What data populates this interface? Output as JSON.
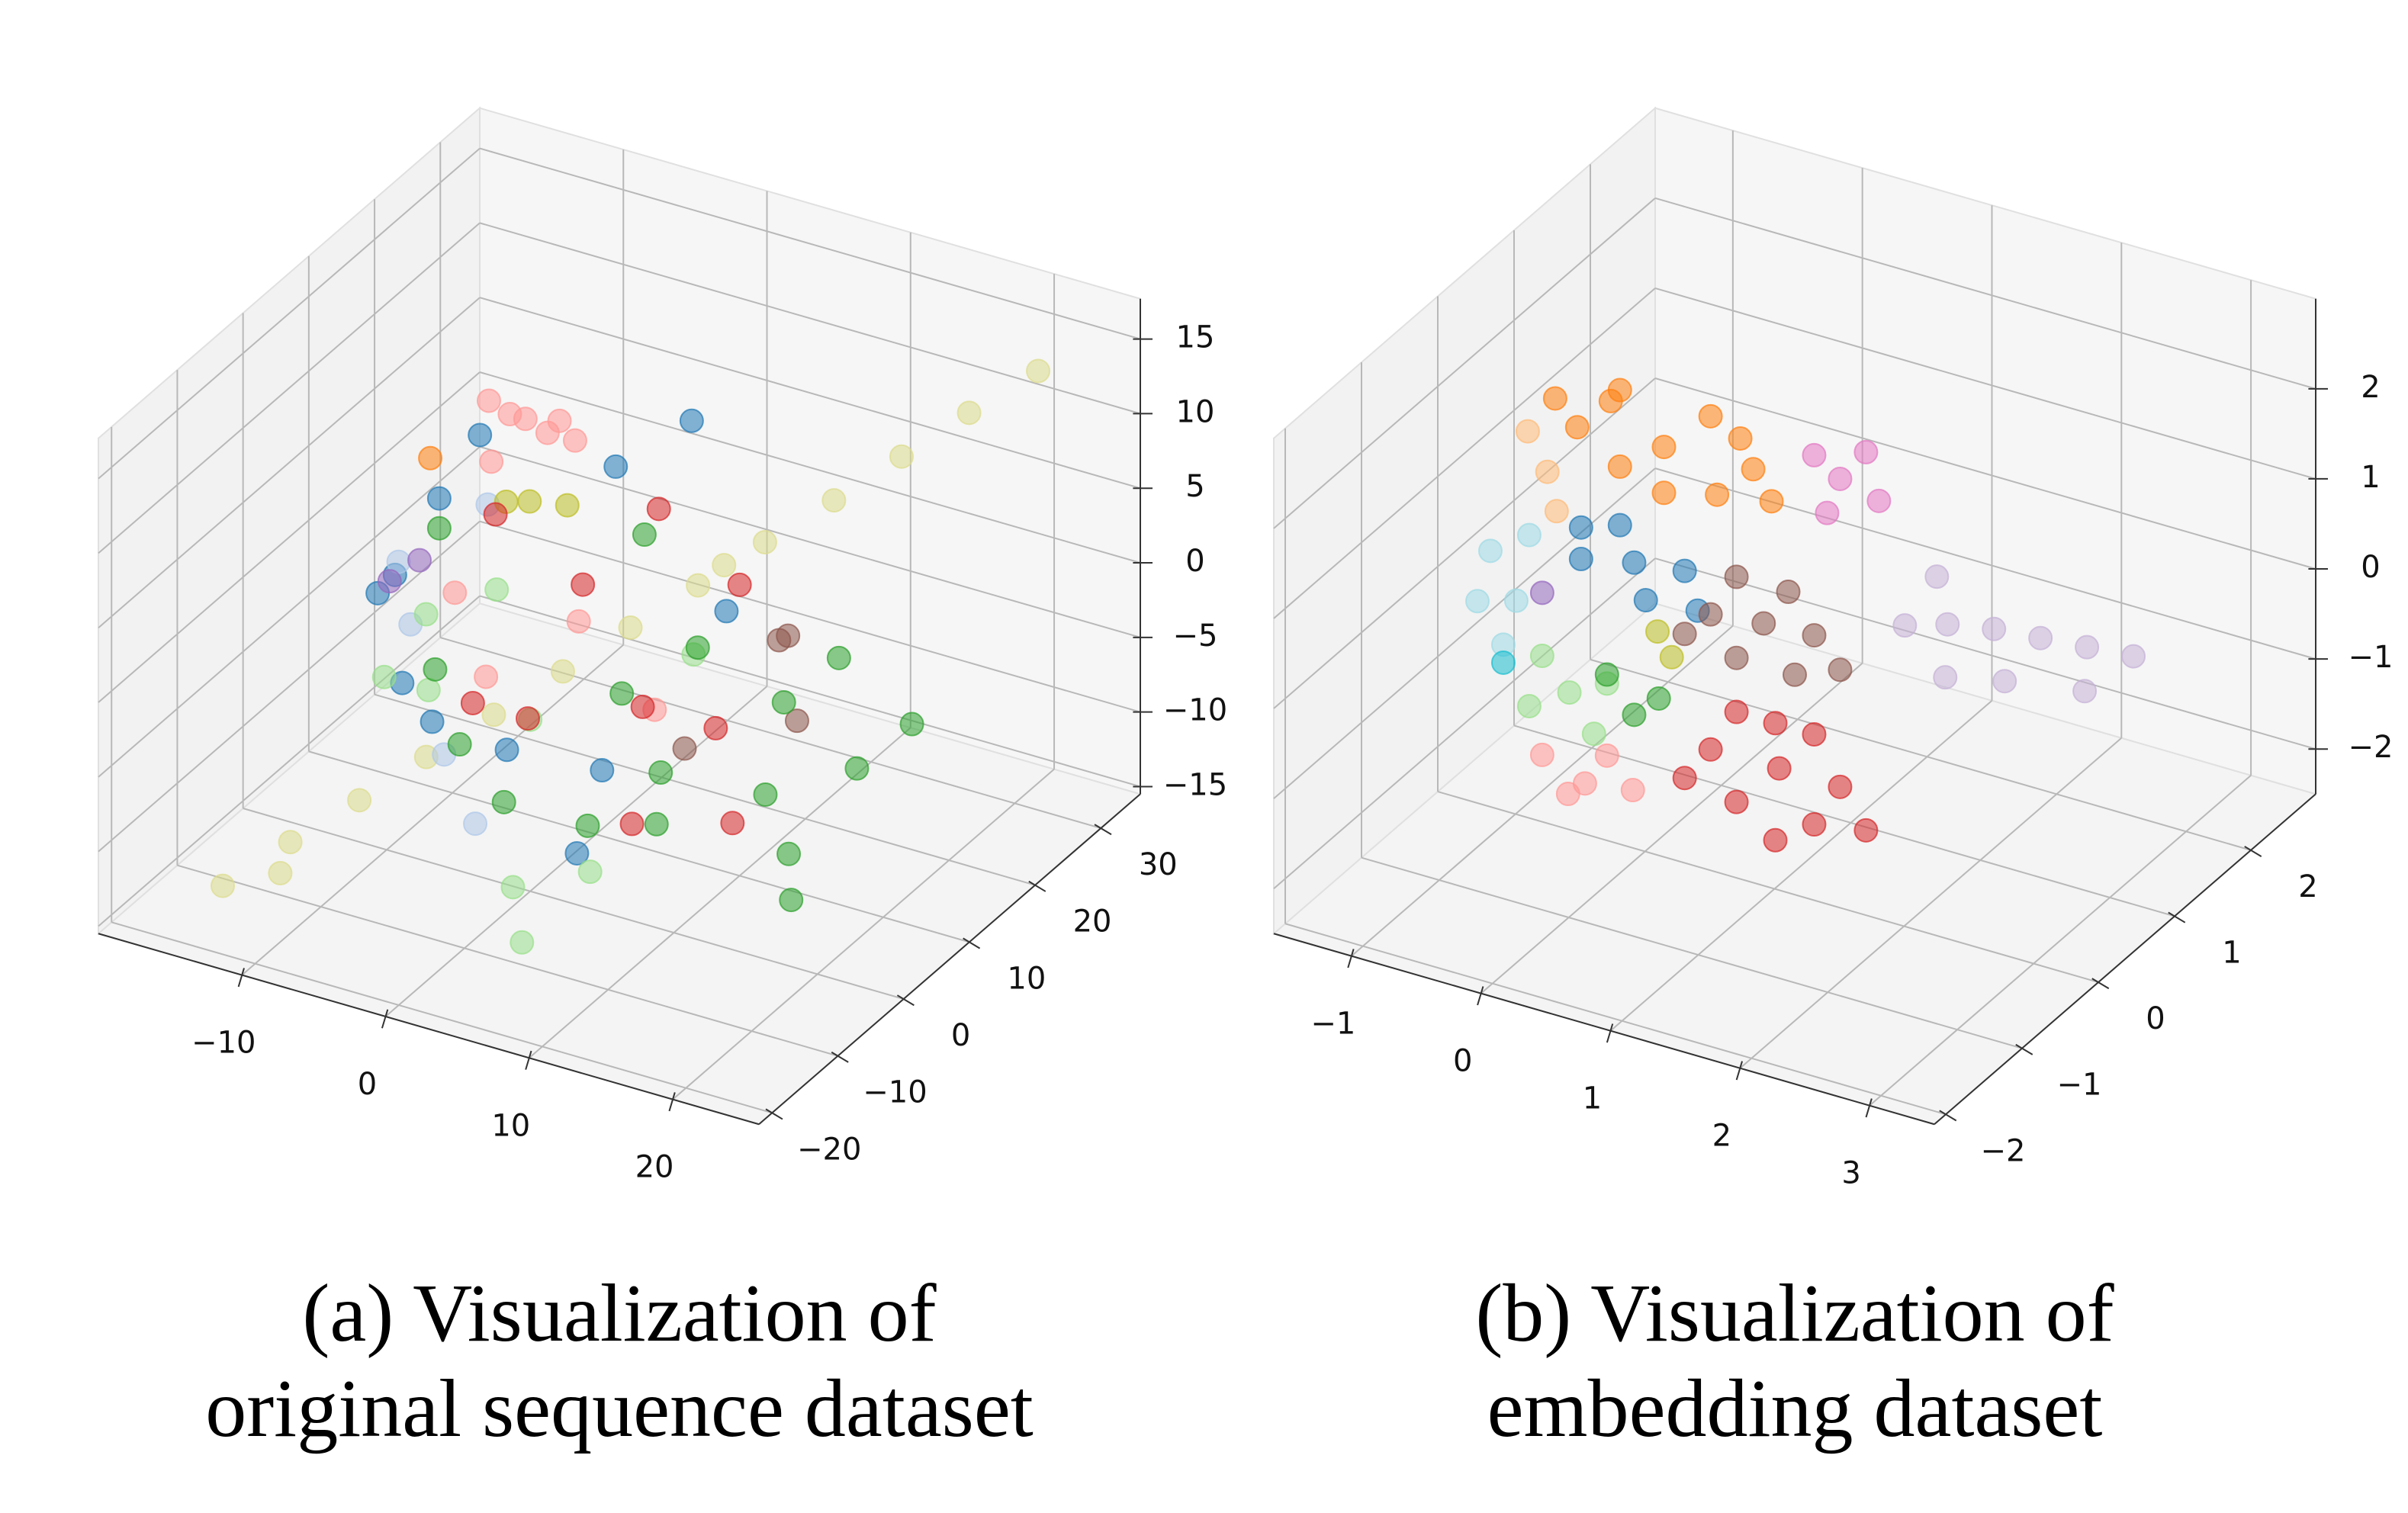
{
  "chart_data": [
    {
      "type": "scatter3d",
      "grid": true,
      "caption": [
        "(a) Visualization of",
        "original sequence dataset"
      ],
      "xlim": [
        -20,
        26
      ],
      "ylim": [
        -22,
        36
      ],
      "zlim": [
        -15.5,
        17.7
      ],
      "xticks": [
        {
          "value": -10,
          "label": "−10"
        },
        0,
        10,
        20
      ],
      "yticks": [
        {
          "value": -20,
          "label": "−20"
        },
        {
          "value": -10,
          "label": "−10"
        },
        0,
        10,
        20,
        30
      ],
      "zticks": [
        {
          "value": -15,
          "label": "−15"
        },
        {
          "value": -10,
          "label": "−10"
        },
        {
          "value": -5,
          "label": "−5"
        },
        0,
        5,
        10,
        15
      ],
      "series": [
        {
          "color": "#dbdb8d",
          "x": [
            -11.8,
            -9.2,
            -6.5,
            -3.9,
            -1.3,
            1.4,
            4.0,
            6.6,
            9.2,
            11.9,
            14.5,
            17.1,
            19.8,
            -11,
            8
          ],
          "y": [
            -21,
            -16.4,
            -11.8,
            -7.3,
            -2.7,
            1.9,
            6.5,
            11.1,
            15.6,
            20.2,
            24.8,
            29.4,
            34,
            -14,
            12
          ],
          "z": [
            -10.4,
            -8.5,
            -6.7,
            -4.8,
            -3.0,
            -1.1,
            0.8,
            2.6,
            4.5,
            6.3,
            8.2,
            10.1,
            11.9,
            -12,
            4
          ]
        },
        {
          "color": "#1f77b4",
          "x": [
            -12,
            -10,
            -8,
            0,
            5,
            -5,
            10,
            -14,
            3,
            -3,
            -9,
            6
          ],
          "y": [
            3,
            8,
            -2,
            13,
            0,
            -4,
            8,
            10,
            18,
            3,
            12,
            -6
          ],
          "z": [
            0,
            5,
            -3,
            8,
            -6,
            -4,
            3,
            -2,
            10,
            -8,
            8,
            -9
          ]
        },
        {
          "color": "#aec7e8",
          "x": [
            -12,
            -6,
            -8,
            -2,
            -11
          ],
          "y": [
            8,
            0,
            11,
            -4,
            4
          ],
          "z": [
            -4,
            -8,
            4,
            -10,
            2
          ]
        },
        {
          "color": "#ff7f0e",
          "x": [
            -12
          ],
          "y": [
            11
          ],
          "z": [
            6
          ]
        },
        {
          "color": "#9467bd",
          "x": [
            -10,
            -13
          ],
          "y": [
            5,
            7
          ],
          "z": [
            2,
            -1
          ]
        },
        {
          "color": "#bcbd22",
          "x": [
            -6,
            -2,
            -9
          ],
          "y": [
            13,
            10,
            16
          ],
          "z": [
            4,
            6,
            2
          ]
        },
        {
          "color": "#ff9896",
          "x": [
            -4,
            -6,
            -2,
            -5,
            -3,
            -7,
            -1,
            2,
            -8,
            5,
            -4
          ],
          "y": [
            8,
            10,
            7,
            5,
            11,
            9,
            9,
            3,
            6,
            8,
            2
          ],
          "z": [
            12,
            11,
            12,
            10,
            11,
            12,
            11,
            2,
            0,
            -5,
            -3
          ]
        },
        {
          "color": "#8c564b",
          "x": [
            12,
            10,
            8,
            14
          ],
          "y": [
            13,
            16,
            6,
            10
          ],
          "z": [
            0,
            -2,
            -6,
            -4
          ]
        },
        {
          "color": "#98df8a",
          "x": [
            -10,
            -8,
            2,
            -6,
            6,
            0,
            10,
            -12,
            4
          ],
          "y": [
            6,
            2,
            -7,
            8,
            -4,
            0,
            3,
            4,
            -10
          ],
          "z": [
            -2,
            -5,
            -12,
            0,
            -11,
            -4,
            2,
            -6,
            -14
          ]
        },
        {
          "color": "#d62728",
          "x": [
            0,
            6,
            10,
            -4,
            8,
            3,
            12,
            -2,
            15,
            -7
          ],
          "y": [
            8,
            4,
            10,
            0,
            -2,
            13,
            2,
            4,
            -2,
            10
          ],
          "z": [
            2,
            -3,
            4,
            -4,
            -8,
            6,
            -2,
            -6,
            -6,
            4
          ]
        },
        {
          "color": "#2ca02c",
          "x": [
            5,
            10,
            15,
            8,
            0,
            12,
            18,
            4,
            -4,
            14,
            2,
            -8,
            20,
            -10,
            20,
            22,
            16
          ],
          "y": [
            3,
            -2,
            3,
            8,
            -4,
            -7,
            0,
            0,
            -2,
            8,
            13,
            3,
            -4,
            8,
            6,
            10,
            12
          ],
          "z": [
            -2,
            -4,
            -6,
            0,
            -8,
            -5,
            -8,
            -10,
            -6,
            -2,
            4,
            -4,
            -9,
            3,
            -4,
            -2,
            0
          ]
        }
      ]
    },
    {
      "type": "scatter3d",
      "grid": true,
      "caption": [
        "(b) Visualization of",
        "embedding dataset"
      ],
      "xlim": [
        -1.6,
        3.5
      ],
      "ylim": [
        -2.15,
        2.85
      ],
      "zlim": [
        -2.5,
        3.0
      ],
      "xticks": [
        {
          "value": -1,
          "label": "−1"
        },
        0,
        1,
        2,
        3
      ],
      "yticks": [
        {
          "value": -2,
          "label": "−2"
        },
        {
          "value": -1,
          "label": "−1"
        },
        0,
        1,
        2
      ],
      "zticks": [
        {
          "value": -2,
          "label": "−2"
        },
        {
          "value": -1,
          "label": "−1"
        },
        0,
        1,
        2
      ],
      "series": [
        {
          "color": "#ffbb78",
          "x": [
            -0.96,
            -1.2,
            -0.8
          ],
          "y": [
            0.35,
            0.5,
            0.2
          ],
          "z": [
            1.06,
            1.3,
            0.8
          ]
        },
        {
          "color": "#9edae5",
          "x": [
            -1.2,
            -1.4,
            -1.3,
            -1.1,
            -1.5
          ],
          "y": [
            0.35,
            0.35,
            0.35,
            0.35,
            0.35
          ],
          "z": [
            -0.47,
            0,
            -1,
            0.3,
            -0.6
          ]
        },
        {
          "color": "#17becf",
          "x": [
            -1.3
          ],
          "y": [
            0.35
          ],
          "z": [
            -1.2
          ]
        },
        {
          "color": "#9467bd",
          "x": [
            -1.0
          ],
          "y": [
            0.35
          ],
          "z": [
            -0.3
          ]
        },
        {
          "color": "#ff7f0e",
          "x": [
            -0.06,
            -0.7,
            0.6,
            -0.4,
            0.3,
            -0.06,
            -0.9,
            0.8,
            -0.4,
            0.35,
            -0.5,
            0.5
          ],
          "y": [
            0.35,
            0.3,
            0.4,
            0.35,
            0.35,
            0.35,
            0.35,
            0.3,
            0.35,
            0.35,
            0.4,
            0.4
          ],
          "z": [
            1.71,
            1.7,
            1.7,
            2.2,
            2.2,
            1.2,
            1.9,
            1.5,
            1.35,
            1.35,
            2.0,
            2.0
          ]
        },
        {
          "color": "#e377c2",
          "x": [
            1.3,
            1.5,
            1.2,
            1.6,
            1.1
          ],
          "y": [
            0.35,
            0.35,
            0.35,
            0.35,
            0.35
          ],
          "z": [
            1.92,
            2.3,
            1.5,
            1.8,
            2.1
          ]
        },
        {
          "color": "#1f77b4",
          "x": [
            -0.29,
            -0.7,
            0.1,
            -0.4,
            -0.2,
            0.2,
            -0.7
          ],
          "y": [
            0.35,
            0.35,
            0.35,
            0.35,
            0.35,
            0.35,
            0.35
          ],
          "z": [
            0.33,
            0.2,
            0.4,
            0.7,
            -0.05,
            0.0,
            0.55
          ]
        },
        {
          "color": "#bcbd22",
          "x": [
            -0.11,
            0.0
          ],
          "y": [
            0.35,
            0.35
          ],
          "z": [
            -0.36,
            -0.6
          ]
        },
        {
          "color": "#c5b0d5",
          "x": [
            1.8,
            2.1,
            2.4,
            2.7,
            3.0,
            3.3,
            2.2,
            2.6,
            3.1,
            1.9
          ],
          "y": [
            0.35,
            0.4,
            0.5,
            0.6,
            0.7,
            0.8,
            0.2,
            0.3,
            0.5,
            0.6
          ],
          "z": [
            0.5,
            0.6,
            0.6,
            0.55,
            0.5,
            0.45,
            0.2,
            0.25,
            0.2,
            0.9
          ]
        },
        {
          "color": "#8c564b",
          "x": [
            0.71,
            0.3,
            1.1,
            0.5,
            0.9,
            0.5,
            0.95,
            0.1,
            1.3
          ],
          "y": [
            0.35,
            0.35,
            0.35,
            0.35,
            0.35,
            0.35,
            0.35,
            0.35,
            0.35
          ],
          "z": [
            0.07,
            0.0,
            0.1,
            0.5,
            0.5,
            -0.4,
            -0.4,
            -0.3,
            -0.2
          ]
        },
        {
          "color": "#98df8a",
          "x": [
            -0.79,
            -1.0,
            -0.6,
            -1.1,
            -0.5
          ],
          "y": [
            0.35,
            0.35,
            0.35,
            0.35,
            0.35
          ],
          "z": [
            -1.32,
            -1.0,
            -1.7,
            -1.6,
            -1.1
          ]
        },
        {
          "color": "#2ca02c",
          "x": [
            -0.29,
            -0.1,
            -0.5
          ],
          "y": [
            0.35,
            0.35,
            0.35
          ],
          "z": [
            -1.36,
            -1.1,
            -1.0
          ]
        },
        {
          "color": "#ff9896",
          "x": [
            -0.67,
            -0.3,
            -1.0,
            -0.5,
            -0.8
          ],
          "y": [
            0.35,
            0.35,
            0.35,
            0.35,
            0.35
          ],
          "z": [
            -2.28,
            -2.2,
            -2.1,
            -1.9,
            -2.45
          ]
        },
        {
          "color": "#d62728",
          "x": [
            0.83,
            0.3,
            1.3,
            0.5,
            1.1,
            0.5,
            1.1,
            0.8,
            0.1,
            1.5,
            0.8
          ],
          "y": [
            0.35,
            0.35,
            0.35,
            0.35,
            0.35,
            0.35,
            0.35,
            0.35,
            0.35,
            0.35,
            0.35
          ],
          "z": [
            -1.49,
            -1.5,
            -1.5,
            -1.0,
            -1.0,
            -2.0,
            -2.0,
            -2.3,
            -1.9,
            -1.9,
            -1.0
          ]
        }
      ]
    }
  ]
}
